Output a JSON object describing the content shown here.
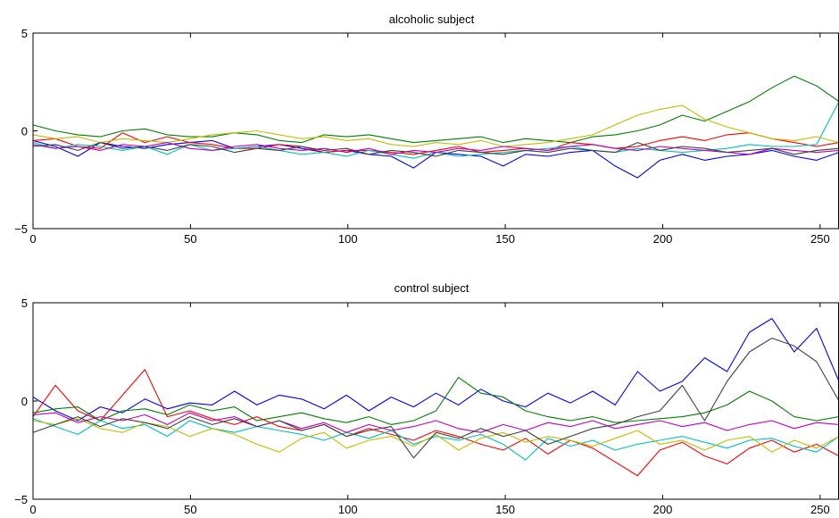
{
  "chart_data": [
    {
      "type": "line",
      "title": "alcoholic subject",
      "xlabel": "",
      "ylabel": "",
      "xlim": [
        0,
        256
      ],
      "ylim": [
        -5,
        5
      ],
      "xticks": [
        "0",
        "50",
        "100",
        "150",
        "200",
        "250"
      ],
      "xtick_values": [
        0,
        50,
        100,
        150,
        200,
        250
      ],
      "yticks": [
        "−5",
        "0",
        "5"
      ],
      "ytick_values": [
        -5,
        0,
        5
      ],
      "grid": false,
      "legend": "none",
      "series": [
        {
          "color": "#0000ff",
          "values": [
            -0.5,
            -0.8,
            -1.3,
            -0.6,
            -0.8,
            -0.9,
            -0.7,
            -0.6,
            -0.5,
            -0.9,
            -0.8,
            -0.7,
            -0.9,
            -1.1,
            -1.0,
            -1.2,
            -1.3,
            -1.9,
            -1.1,
            -1.2,
            -1.3,
            -1.8,
            -1.2,
            -1.3,
            -1.1,
            -1.0,
            -1.8,
            -2.4,
            -1.5,
            -1.2,
            -1.5,
            -1.3,
            -1.2,
            -1.0,
            -1.3,
            -1.5,
            -1.1
          ]
        },
        {
          "color": "#008000",
          "values": [
            0.3,
            0.0,
            -0.2,
            -0.3,
            0.0,
            0.1,
            -0.2,
            -0.3,
            -0.3,
            -0.1,
            -0.2,
            -0.5,
            -0.6,
            -0.2,
            -0.3,
            -0.2,
            -0.4,
            -0.6,
            -0.5,
            -0.4,
            -0.3,
            -0.6,
            -0.4,
            -0.5,
            -0.6,
            -0.3,
            -0.2,
            0.0,
            0.3,
            0.8,
            0.5,
            1.0,
            1.5,
            2.2,
            2.8,
            2.3,
            1.5
          ]
        },
        {
          "color": "#ff0000",
          "values": [
            -0.5,
            -0.4,
            -0.8,
            -0.9,
            -0.1,
            -0.6,
            -0.3,
            -0.6,
            -0.7,
            -0.9,
            -0.9,
            -0.7,
            -0.8,
            -1.1,
            -1.0,
            -1.0,
            -1.1,
            -1.2,
            -1.0,
            -0.8,
            -1.1,
            -1.0,
            -0.9,
            -1.0,
            -0.6,
            -0.7,
            -0.9,
            -0.8,
            -0.5,
            -0.3,
            -0.5,
            -0.2,
            -0.1,
            -0.4,
            -0.6,
            -0.8,
            -0.6
          ]
        },
        {
          "color": "#00bfbf",
          "values": [
            -0.6,
            -0.9,
            -0.7,
            -0.8,
            -1.0,
            -0.8,
            -1.2,
            -0.7,
            -1.0,
            -0.9,
            -0.8,
            -1.0,
            -1.2,
            -1.1,
            -1.3,
            -1.0,
            -1.2,
            -1.4,
            -1.1,
            -1.3,
            -1.2,
            -1.1,
            -1.0,
            -0.9,
            -0.8,
            -1.0,
            -1.1,
            -0.9,
            -1.0,
            -1.1,
            -1.0,
            -0.9,
            -0.7,
            -0.8,
            -0.8,
            -0.7,
            1.5
          ]
        },
        {
          "color": "#bfbf00",
          "values": [
            -0.2,
            -0.4,
            -0.3,
            -0.6,
            -0.4,
            -0.5,
            -0.6,
            -0.4,
            -0.2,
            -0.1,
            0.0,
            -0.2,
            -0.4,
            -0.3,
            -0.5,
            -0.4,
            -0.7,
            -0.8,
            -0.6,
            -0.7,
            -0.5,
            -0.8,
            -0.7,
            -0.6,
            -0.4,
            -0.2,
            0.3,
            0.8,
            1.1,
            1.3,
            0.6,
            0.2,
            -0.1,
            -0.4,
            -0.5,
            -0.3,
            -0.6
          ]
        },
        {
          "color": "#bf00bf",
          "values": [
            -0.7,
            -0.9,
            -0.8,
            -1.0,
            -0.7,
            -0.8,
            -0.6,
            -0.9,
            -1.0,
            -0.8,
            -0.7,
            -0.9,
            -1.0,
            -0.9,
            -1.1,
            -0.9,
            -1.2,
            -1.0,
            -1.1,
            -0.9,
            -1.0,
            -0.8,
            -0.9,
            -1.0,
            -0.8,
            -0.7,
            -0.9,
            -1.0,
            -0.8,
            -0.9,
            -1.0,
            -1.1,
            -1.2,
            -0.9,
            -1.0,
            -1.1,
            -1.0
          ]
        },
        {
          "color": "#404040",
          "values": [
            -0.8,
            -0.7,
            -1.0,
            -0.6,
            -0.9,
            -0.8,
            -1.0,
            -0.7,
            -0.8,
            -1.1,
            -0.9,
            -1.0,
            -0.8,
            -1.0,
            -0.9,
            -1.2,
            -1.0,
            -1.1,
            -1.3,
            -1.0,
            -1.1,
            -1.2,
            -1.0,
            -1.1,
            -0.9,
            -1.0,
            -1.1,
            -0.6,
            -1.0,
            -0.8,
            -0.9,
            -1.1,
            -1.0,
            -0.9,
            -1.2,
            -1.0,
            -0.9
          ]
        }
      ]
    },
    {
      "type": "line",
      "title": "control subject",
      "xlabel": "",
      "ylabel": "",
      "xlim": [
        0,
        256
      ],
      "ylim": [
        -5,
        5
      ],
      "xticks": [
        "0",
        "50",
        "100",
        "150",
        "200",
        "250"
      ],
      "xtick_values": [
        0,
        50,
        100,
        150,
        200,
        250
      ],
      "yticks": [
        "−5",
        "0",
        "5"
      ],
      "ytick_values": [
        -5,
        0,
        5
      ],
      "grid": false,
      "legend": "none",
      "series": [
        {
          "color": "#0000ff",
          "values": [
            0.2,
            -0.5,
            -1.0,
            -0.3,
            -0.6,
            0.1,
            -0.4,
            -0.1,
            -0.2,
            0.5,
            -0.2,
            0.3,
            0.1,
            -0.4,
            0.3,
            -0.5,
            0.2,
            -0.3,
            0.4,
            -0.2,
            0.6,
            0.0,
            -0.3,
            0.4,
            -0.1,
            0.5,
            -0.2,
            1.5,
            0.5,
            1.0,
            2.2,
            1.5,
            3.5,
            4.2,
            2.5,
            3.7,
            1.0
          ]
        },
        {
          "color": "#ff0000",
          "values": [
            -0.8,
            0.8,
            -0.5,
            -1.0,
            0.3,
            1.6,
            -0.8,
            -0.5,
            -0.9,
            -1.2,
            -0.8,
            -1.3,
            -1.5,
            -1.2,
            -1.8,
            -1.4,
            -1.7,
            -2.0,
            -1.5,
            -1.8,
            -2.2,
            -2.5,
            -1.9,
            -2.7,
            -2.0,
            -2.4,
            -3.1,
            -3.8,
            -2.5,
            -2.1,
            -2.8,
            -3.2,
            -2.4,
            -2.0,
            -2.6,
            -2.2,
            -2.8
          ]
        },
        {
          "color": "#008000",
          "values": [
            -0.6,
            -0.4,
            -0.3,
            -1.0,
            -0.5,
            -0.4,
            -0.7,
            -0.2,
            -0.5,
            -0.3,
            -1.0,
            -0.8,
            -0.6,
            -0.9,
            -1.1,
            -0.8,
            -1.2,
            -1.0,
            -0.5,
            1.2,
            0.4,
            0.2,
            -0.5,
            -0.8,
            -1.0,
            -0.8,
            -1.1,
            -1.0,
            -0.9,
            -0.8,
            -0.6,
            -0.2,
            0.5,
            0.0,
            -0.8,
            -1.0,
            -0.8
          ]
        },
        {
          "color": "#00bfbf",
          "values": [
            -0.9,
            -1.3,
            -1.7,
            -1.0,
            -1.4,
            -1.2,
            -1.8,
            -1.0,
            -1.4,
            -1.6,
            -1.3,
            -1.5,
            -1.7,
            -2.0,
            -1.6,
            -1.9,
            -1.5,
            -2.2,
            -1.8,
            -2.0,
            -1.7,
            -2.2,
            -3.0,
            -1.9,
            -2.3,
            -2.0,
            -2.5,
            -2.2,
            -2.0,
            -1.8,
            -2.1,
            -2.4,
            -2.0,
            -1.9,
            -2.3,
            -2.6,
            -1.8
          ]
        },
        {
          "color": "#bfbf00",
          "values": [
            -1.0,
            -1.2,
            -0.9,
            -1.4,
            -1.6,
            -1.1,
            -1.3,
            -1.8,
            -1.4,
            -1.7,
            -2.2,
            -2.6,
            -1.9,
            -1.6,
            -2.4,
            -2.0,
            -1.8,
            -2.3,
            -1.7,
            -2.5,
            -1.9,
            -1.6,
            -2.1,
            -1.8,
            -2.0,
            -2.3,
            -1.9,
            -1.5,
            -2.2,
            -2.0,
            -2.5,
            -2.0,
            -1.8,
            -2.6,
            -2.0,
            -2.4,
            -1.8
          ]
        },
        {
          "color": "#bf00bf",
          "values": [
            -0.7,
            -0.6,
            -1.1,
            -0.8,
            -1.0,
            -0.7,
            -1.2,
            -0.6,
            -1.0,
            -0.8,
            -1.3,
            -1.0,
            -1.4,
            -1.1,
            -1.6,
            -1.2,
            -1.5,
            -1.3,
            -1.0,
            -1.4,
            -1.6,
            -1.2,
            -1.5,
            -1.1,
            -1.3,
            -1.0,
            -1.4,
            -1.2,
            -1.0,
            -1.3,
            -1.1,
            -1.5,
            -1.2,
            -1.0,
            -1.4,
            -1.1,
            -1.2
          ]
        },
        {
          "color": "#404040",
          "values": [
            -1.6,
            -1.2,
            -0.8,
            -1.3,
            -0.9,
            -1.1,
            -1.4,
            -0.8,
            -1.2,
            -0.9,
            -1.3,
            -1.0,
            -1.5,
            -1.2,
            -1.8,
            -1.5,
            -1.3,
            -2.9,
            -1.6,
            -1.9,
            -1.4,
            -1.8,
            -1.5,
            -2.2,
            -1.8,
            -1.4,
            -1.2,
            -0.8,
            -0.5,
            0.8,
            -1.0,
            1.0,
            2.5,
            3.2,
            2.8,
            2.0,
            0.0
          ]
        }
      ]
    }
  ]
}
